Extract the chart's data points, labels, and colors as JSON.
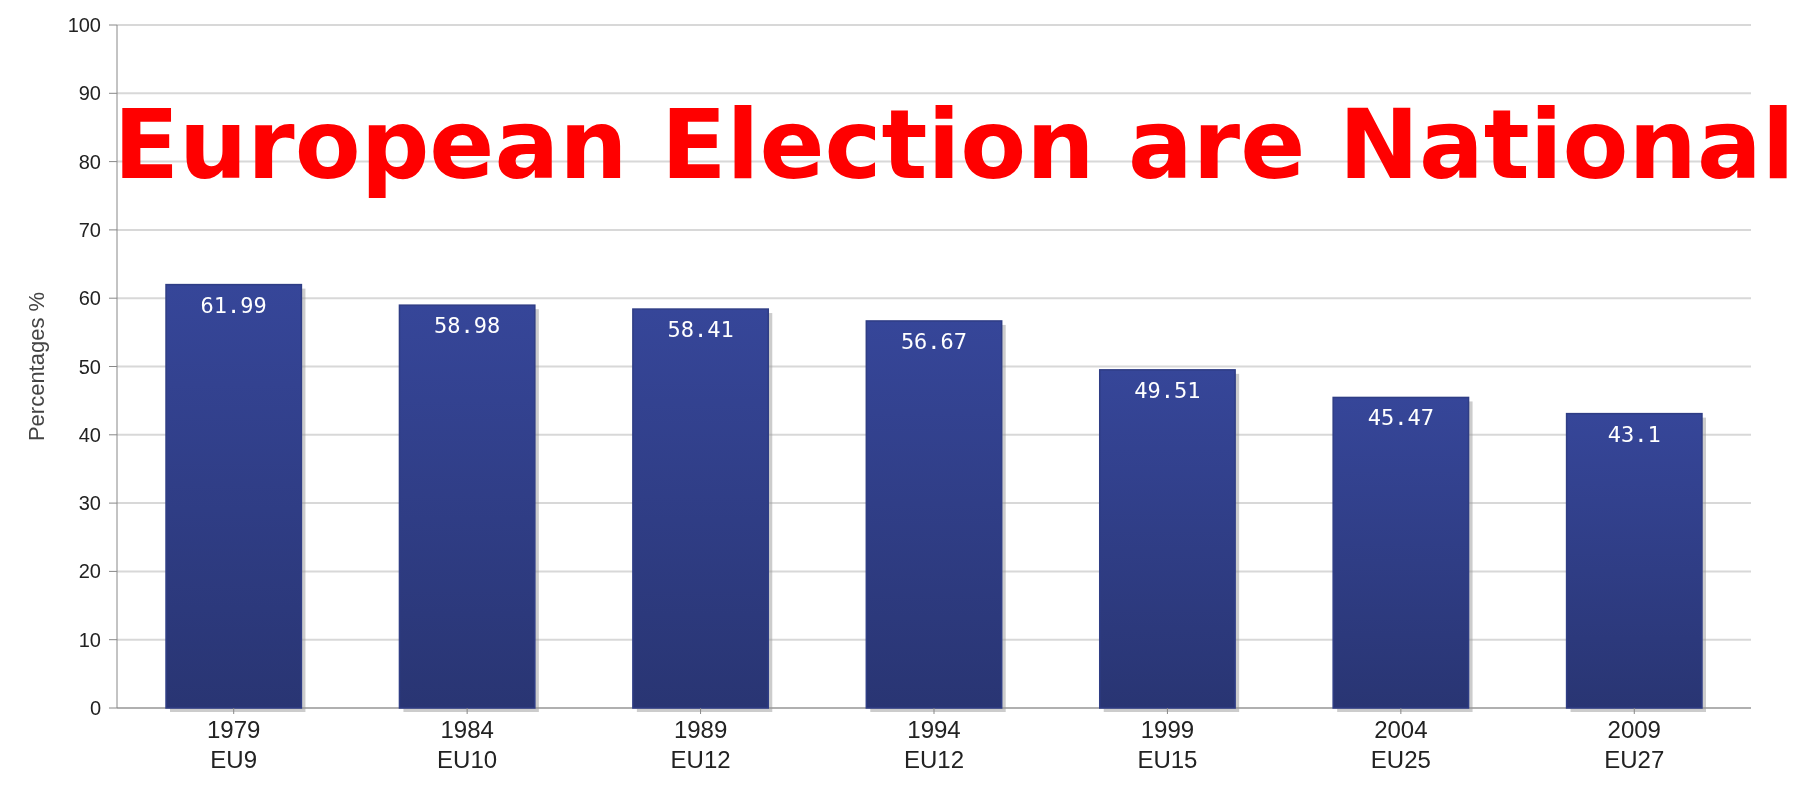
{
  "chart_data": {
    "type": "bar",
    "title": "European Election are National",
    "ylabel": "Percentages %",
    "categories": [
      "1979\nEU9",
      "1984\nEU10",
      "1989\nEU12",
      "1994\nEU12",
      "1999\nEU15",
      "2004\nEU25",
      "2009\nEU27"
    ],
    "values": [
      61.99,
      58.98,
      58.41,
      56.67,
      49.51,
      45.47,
      43.1
    ],
    "color": "#2f3d85",
    "ylim": [
      0,
      100
    ],
    "yticks": [
      0,
      10,
      20,
      30,
      40,
      50,
      60,
      70,
      80,
      90,
      100
    ],
    "grid": "y",
    "data_labels": true
  }
}
